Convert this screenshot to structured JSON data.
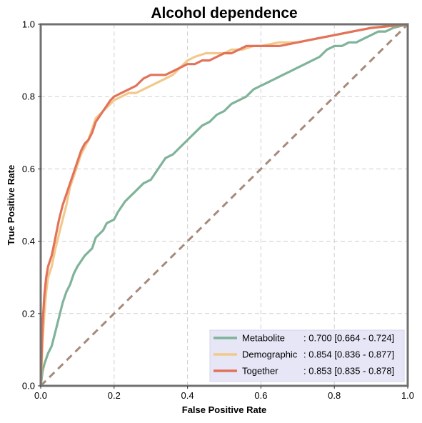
{
  "chart_data": {
    "type": "line",
    "title": "Alcohol dependence",
    "xlabel": "False Positive Rate",
    "ylabel": "True Positive Rate",
    "xlim": [
      0,
      1
    ],
    "ylim": [
      0,
      1
    ],
    "xticks": [
      "0.0",
      "0.2",
      "0.4",
      "0.6",
      "0.8",
      "1.0"
    ],
    "yticks": [
      "0.0",
      "0.2",
      "0.4",
      "0.6",
      "0.8",
      "1.0"
    ],
    "grid": true,
    "legend_position": "lower-right",
    "diagonal": {
      "color": "#A68A7B",
      "points": [
        [
          0,
          0
        ],
        [
          1,
          1
        ]
      ]
    },
    "series": [
      {
        "name": "Metabolite",
        "legend_name": "Metabolite     ",
        "legend_stats": ": 0.700 [0.664 - 0.724]",
        "color": "#7FB39A",
        "points": [
          [
            0,
            0
          ],
          [
            0.005,
            0.04
          ],
          [
            0.01,
            0.06
          ],
          [
            0.02,
            0.09
          ],
          [
            0.03,
            0.11
          ],
          [
            0.04,
            0.15
          ],
          [
            0.05,
            0.19
          ],
          [
            0.06,
            0.23
          ],
          [
            0.07,
            0.26
          ],
          [
            0.08,
            0.28
          ],
          [
            0.09,
            0.31
          ],
          [
            0.1,
            0.33
          ],
          [
            0.12,
            0.36
          ],
          [
            0.14,
            0.38
          ],
          [
            0.15,
            0.41
          ],
          [
            0.17,
            0.43
          ],
          [
            0.18,
            0.45
          ],
          [
            0.2,
            0.46
          ],
          [
            0.21,
            0.48
          ],
          [
            0.23,
            0.51
          ],
          [
            0.25,
            0.53
          ],
          [
            0.27,
            0.55
          ],
          [
            0.28,
            0.56
          ],
          [
            0.3,
            0.57
          ],
          [
            0.32,
            0.6
          ],
          [
            0.34,
            0.63
          ],
          [
            0.36,
            0.64
          ],
          [
            0.38,
            0.66
          ],
          [
            0.4,
            0.68
          ],
          [
            0.42,
            0.7
          ],
          [
            0.44,
            0.72
          ],
          [
            0.46,
            0.73
          ],
          [
            0.48,
            0.75
          ],
          [
            0.5,
            0.76
          ],
          [
            0.52,
            0.78
          ],
          [
            0.54,
            0.79
          ],
          [
            0.56,
            0.8
          ],
          [
            0.58,
            0.82
          ],
          [
            0.6,
            0.83
          ],
          [
            0.62,
            0.84
          ],
          [
            0.64,
            0.85
          ],
          [
            0.66,
            0.86
          ],
          [
            0.68,
            0.87
          ],
          [
            0.7,
            0.88
          ],
          [
            0.72,
            0.89
          ],
          [
            0.74,
            0.9
          ],
          [
            0.76,
            0.91
          ],
          [
            0.78,
            0.93
          ],
          [
            0.8,
            0.94
          ],
          [
            0.82,
            0.94
          ],
          [
            0.84,
            0.95
          ],
          [
            0.86,
            0.95
          ],
          [
            0.88,
            0.96
          ],
          [
            0.9,
            0.97
          ],
          [
            0.92,
            0.98
          ],
          [
            0.94,
            0.98
          ],
          [
            0.96,
            0.99
          ],
          [
            1,
            1
          ]
        ]
      },
      {
        "name": "Demographic",
        "legend_name": "Demographic",
        "legend_stats": ": 0.854 [0.836 - 0.877]",
        "color": "#F2C98C",
        "points": [
          [
            0,
            0
          ],
          [
            0.005,
            0.12
          ],
          [
            0.01,
            0.2
          ],
          [
            0.015,
            0.26
          ],
          [
            0.02,
            0.3
          ],
          [
            0.03,
            0.33
          ],
          [
            0.04,
            0.38
          ],
          [
            0.05,
            0.42
          ],
          [
            0.06,
            0.46
          ],
          [
            0.07,
            0.5
          ],
          [
            0.08,
            0.55
          ],
          [
            0.09,
            0.58
          ],
          [
            0.1,
            0.61
          ],
          [
            0.11,
            0.64
          ],
          [
            0.12,
            0.66
          ],
          [
            0.13,
            0.68
          ],
          [
            0.14,
            0.71
          ],
          [
            0.15,
            0.74
          ],
          [
            0.17,
            0.76
          ],
          [
            0.19,
            0.78
          ],
          [
            0.2,
            0.79
          ],
          [
            0.22,
            0.8
          ],
          [
            0.24,
            0.81
          ],
          [
            0.26,
            0.81
          ],
          [
            0.28,
            0.82
          ],
          [
            0.3,
            0.83
          ],
          [
            0.32,
            0.84
          ],
          [
            0.34,
            0.85
          ],
          [
            0.36,
            0.86
          ],
          [
            0.38,
            0.88
          ],
          [
            0.4,
            0.9
          ],
          [
            0.42,
            0.91
          ],
          [
            0.45,
            0.92
          ],
          [
            0.48,
            0.92
          ],
          [
            0.5,
            0.92
          ],
          [
            0.52,
            0.93
          ],
          [
            0.55,
            0.93
          ],
          [
            0.58,
            0.94
          ],
          [
            0.6,
            0.94
          ],
          [
            0.65,
            0.95
          ],
          [
            0.7,
            0.95
          ],
          [
            0.75,
            0.96
          ],
          [
            0.8,
            0.97
          ],
          [
            0.85,
            0.98
          ],
          [
            0.9,
            0.99
          ],
          [
            0.95,
            0.995
          ],
          [
            1,
            1
          ]
        ]
      },
      {
        "name": "Together",
        "legend_name": "Together       ",
        "legend_stats": ": 0.853 [0.835 - 0.878]",
        "color": "#E2735A",
        "points": [
          [
            0,
            0
          ],
          [
            0.005,
            0.17
          ],
          [
            0.01,
            0.25
          ],
          [
            0.015,
            0.3
          ],
          [
            0.02,
            0.33
          ],
          [
            0.03,
            0.36
          ],
          [
            0.04,
            0.41
          ],
          [
            0.05,
            0.46
          ],
          [
            0.06,
            0.5
          ],
          [
            0.07,
            0.53
          ],
          [
            0.08,
            0.56
          ],
          [
            0.09,
            0.59
          ],
          [
            0.1,
            0.62
          ],
          [
            0.11,
            0.65
          ],
          [
            0.12,
            0.67
          ],
          [
            0.13,
            0.68
          ],
          [
            0.14,
            0.7
          ],
          [
            0.15,
            0.73
          ],
          [
            0.17,
            0.76
          ],
          [
            0.19,
            0.79
          ],
          [
            0.2,
            0.8
          ],
          [
            0.22,
            0.81
          ],
          [
            0.24,
            0.82
          ],
          [
            0.26,
            0.83
          ],
          [
            0.28,
            0.85
          ],
          [
            0.3,
            0.86
          ],
          [
            0.32,
            0.86
          ],
          [
            0.34,
            0.86
          ],
          [
            0.36,
            0.87
          ],
          [
            0.38,
            0.88
          ],
          [
            0.4,
            0.89
          ],
          [
            0.42,
            0.89
          ],
          [
            0.44,
            0.9
          ],
          [
            0.46,
            0.9
          ],
          [
            0.48,
            0.91
          ],
          [
            0.5,
            0.92
          ],
          [
            0.52,
            0.92
          ],
          [
            0.54,
            0.93
          ],
          [
            0.56,
            0.94
          ],
          [
            0.58,
            0.94
          ],
          [
            0.6,
            0.94
          ],
          [
            0.65,
            0.94
          ],
          [
            0.7,
            0.95
          ],
          [
            0.75,
            0.96
          ],
          [
            0.8,
            0.97
          ],
          [
            0.85,
            0.98
          ],
          [
            0.9,
            0.99
          ],
          [
            0.95,
            0.995
          ],
          [
            1,
            1
          ]
        ]
      }
    ]
  }
}
